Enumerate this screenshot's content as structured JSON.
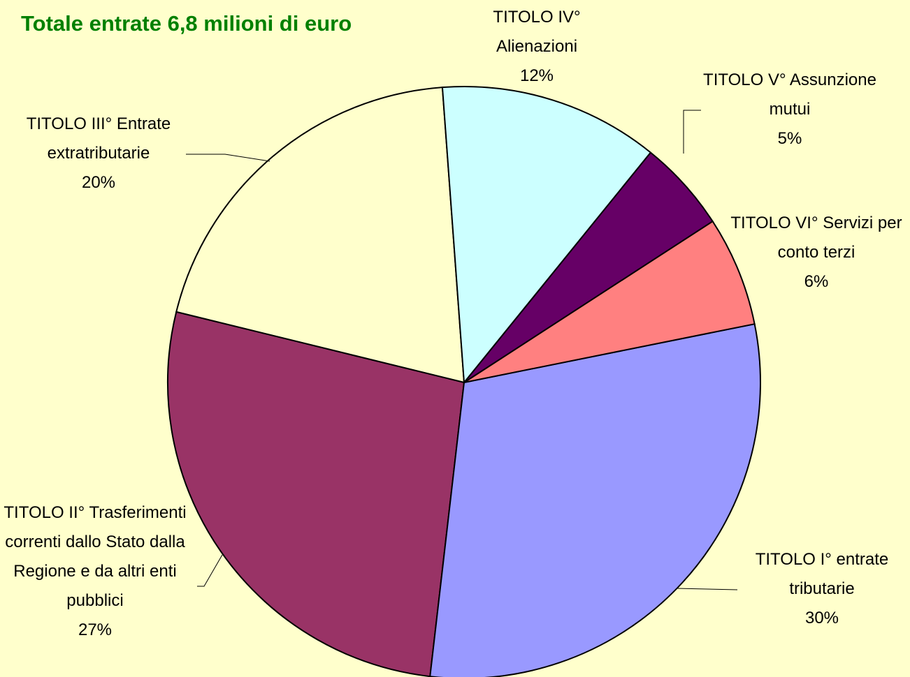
{
  "chart_data": {
    "type": "pie",
    "title": "Totale entrate 6,8 milioni di euro",
    "categories": [
      "TITOLO IV° Alienazioni",
      "TITOLO V° Assunzione mutui",
      "TITOLO VI° Servizi per conto terzi",
      "TITOLO I° entrate tributarie",
      "TITOLO II° Trasferimenti correnti dallo Stato dalla Regione e da altri enti pubblici",
      "TITOLO III° Entrate extratributarie"
    ],
    "values": [
      12,
      5,
      6,
      30,
      27,
      20
    ],
    "value_labels": [
      "12%",
      "5%",
      "6%",
      "30%",
      "27%",
      "20%"
    ],
    "colors": [
      "#ccffff",
      "#660066",
      "#ff8080",
      "#9999ff",
      "#993366",
      "#ffffcc"
    ]
  }
}
